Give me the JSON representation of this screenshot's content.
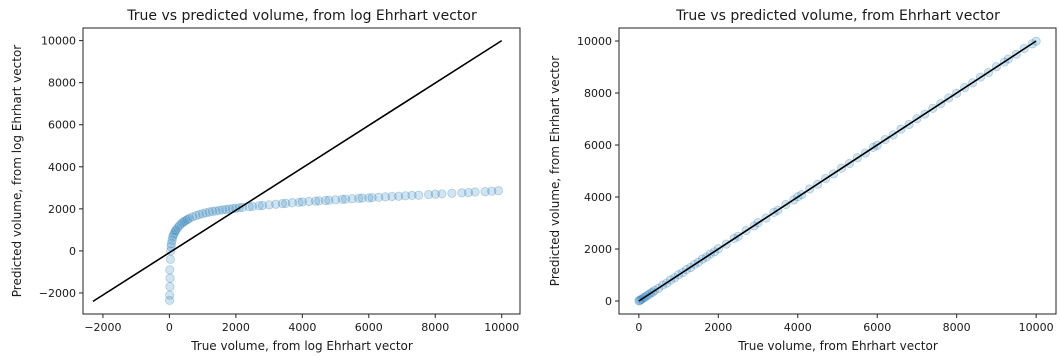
{
  "chart_data": [
    {
      "type": "scatter",
      "title": "True vs predicted volume, from log Ehrhart vector",
      "xlabel": "True volume, from log Ehrhart vector",
      "ylabel": "Predicted volume, from log Ehrhart vector",
      "xlim": [
        -2600,
        10550
      ],
      "ylim": [
        -3000,
        10600
      ],
      "xticks": [
        -2000,
        0,
        2000,
        4000,
        6000,
        8000,
        10000
      ],
      "yticks": [
        -2000,
        0,
        2000,
        4000,
        6000,
        8000,
        10000
      ],
      "grid": false,
      "marker_color": "#1f77b4",
      "marker_alpha": 0.2,
      "line_color": "#000000",
      "reference_line": {
        "x": [
          -2300,
          10000
        ],
        "y": [
          -2400,
          10000
        ]
      },
      "series": [
        {
          "x": [
            5,
            10,
            15,
            20,
            10,
            30,
            40,
            50,
            60,
            80,
            100,
            120,
            150,
            180,
            200,
            250,
            300,
            350,
            400,
            450,
            500,
            550,
            600,
            700,
            800,
            900,
            1000,
            1100,
            1200,
            1300,
            1400,
            1500,
            1600,
            1700,
            1800,
            1900,
            2000,
            2100,
            2200,
            2400,
            2500,
            2700,
            2800,
            3000,
            3200,
            3400,
            3500,
            3700,
            3900,
            4000,
            4200,
            4400,
            4500,
            4700,
            4800,
            5000,
            5200,
            5300,
            5500,
            5700,
            5800,
            6000,
            6100,
            6300,
            6500,
            6700,
            6900,
            7100,
            7300,
            7500,
            7800,
            8000,
            8200,
            8500,
            8800,
            9000,
            9200,
            9500,
            9700,
            9900
          ],
          "y": [
            -2350,
            -2100,
            -1700,
            -1300,
            -900,
            -400,
            0,
            200,
            350,
            500,
            650,
            750,
            850,
            950,
            1000,
            1100,
            1200,
            1280,
            1350,
            1400,
            1450,
            1500,
            1550,
            1620,
            1680,
            1730,
            1770,
            1810,
            1850,
            1880,
            1900,
            1930,
            1950,
            1970,
            1990,
            2010,
            2030,
            2050,
            2070,
            2100,
            2120,
            2150,
            2160,
            2190,
            2220,
            2250,
            2260,
            2290,
            2310,
            2330,
            2350,
            2370,
            2380,
            2400,
            2410,
            2430,
            2450,
            2460,
            2480,
            2500,
            2510,
            2520,
            2530,
            2550,
            2570,
            2590,
            2600,
            2620,
            2640,
            2650,
            2680,
            2700,
            2710,
            2740,
            2760,
            2780,
            2800,
            2820,
            2840,
            2860
          ]
        }
      ]
    },
    {
      "type": "scatter",
      "title": "True vs predicted volume, from Ehrhart vector",
      "xlabel": "True volume, from Ehrhart vector",
      "ylabel": "Predicted volume, from Ehrhart vector",
      "xlim": [
        -500,
        10500
      ],
      "ylim": [
        -500,
        10500
      ],
      "xticks": [
        0,
        2000,
        4000,
        6000,
        8000,
        10000
      ],
      "yticks": [
        0,
        2000,
        4000,
        6000,
        8000,
        10000
      ],
      "grid": false,
      "marker_color": "#1f77b4",
      "marker_alpha": 0.2,
      "line_color": "#000000",
      "reference_line": {
        "x": [
          0,
          10000
        ],
        "y": [
          0,
          10000
        ]
      },
      "series": [
        {
          "x": [
            0,
            20,
            50,
            80,
            120,
            160,
            200,
            250,
            300,
            350,
            400,
            500,
            600,
            700,
            800,
            900,
            1000,
            1100,
            1200,
            1300,
            1400,
            1500,
            1600,
            1700,
            1800,
            1900,
            2000,
            2200,
            2400,
            2500,
            2700,
            2900,
            3000,
            3200,
            3400,
            3500,
            3700,
            3900,
            4000,
            4100,
            4300,
            4500,
            4700,
            4900,
            5100,
            5300,
            5500,
            5700,
            5900,
            6000,
            6200,
            6400,
            6600,
            6800,
            7000,
            7200,
            7400,
            7600,
            7800,
            8000,
            8200,
            8400,
            8600,
            8800,
            9000,
            9200,
            9300,
            9500,
            9700,
            9900,
            10000
          ],
          "y": [
            10,
            15,
            55,
            70,
            130,
            150,
            210,
            240,
            310,
            340,
            410,
            490,
            610,
            690,
            810,
            890,
            1010,
            1090,
            1210,
            1290,
            1410,
            1490,
            1610,
            1690,
            1810,
            1890,
            2010,
            2190,
            2410,
            2490,
            2710,
            2890,
            3010,
            3190,
            3410,
            3490,
            3710,
            3890,
            4010,
            4090,
            4310,
            4490,
            4710,
            4890,
            5110,
            5290,
            5510,
            5690,
            5910,
            5990,
            6210,
            6390,
            6610,
            6790,
            7010,
            7190,
            7410,
            7590,
            7810,
            7990,
            8210,
            8390,
            8610,
            8790,
            9010,
            9190,
            9310,
            9490,
            9710,
            9890,
            9990
          ]
        }
      ]
    }
  ]
}
